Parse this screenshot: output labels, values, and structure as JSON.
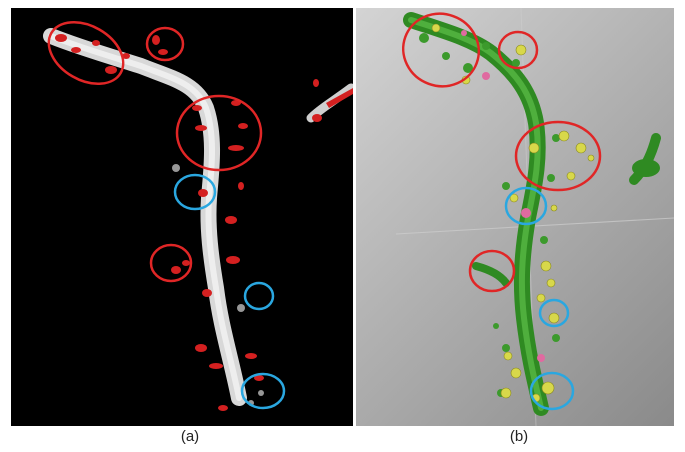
{
  "panels": [
    {
      "label": "(a)"
    },
    {
      "label": "(b)"
    }
  ],
  "colors": {
    "background_a": "#000000",
    "dendrite_a": "#e0e0e0",
    "spine_a": "#d42020",
    "dendrite_b": "#3c9a2c",
    "spine_b": "#d8d84a",
    "circle_red": "#e02626",
    "circle_blue": "#2aa7e0"
  }
}
